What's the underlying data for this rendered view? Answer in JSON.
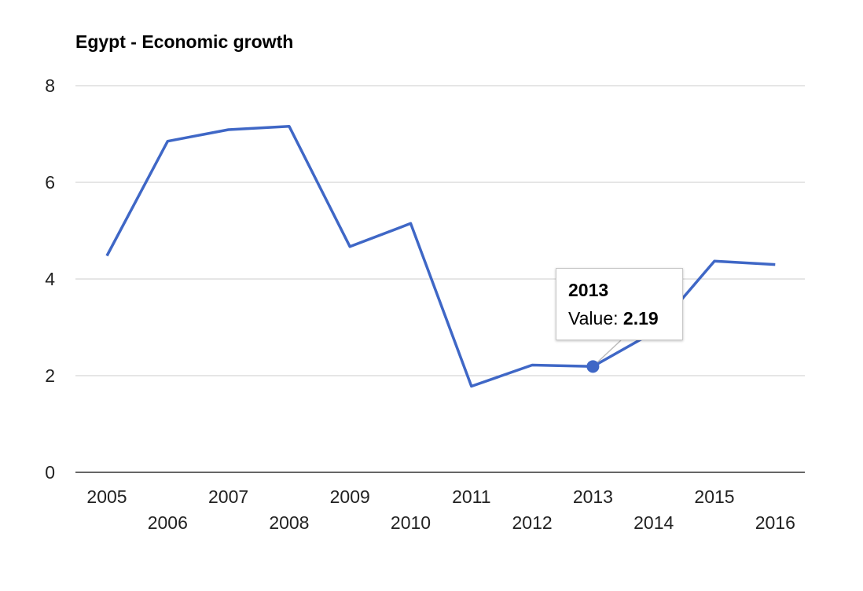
{
  "chart_data": {
    "type": "line",
    "title": "Egypt - Economic growth",
    "xlabel": "",
    "ylabel": "",
    "x": [
      "2005",
      "2006",
      "2007",
      "2008",
      "2009",
      "2010",
      "2011",
      "2012",
      "2013",
      "2014",
      "2015",
      "2016"
    ],
    "series": [
      {
        "values": [
          4.48,
          6.85,
          7.09,
          7.16,
          4.67,
          5.15,
          1.78,
          2.22,
          2.19,
          2.9,
          4.37,
          4.3
        ]
      }
    ],
    "ylim": [
      0,
      8
    ],
    "yticks": [
      "0",
      "2",
      "4",
      "6",
      "8"
    ],
    "grid": true,
    "legend": "none",
    "line_color": "#3f67c6",
    "grid_color": "#cccccc",
    "axis_color": "#333333"
  },
  "tooltip": {
    "category": "2013",
    "label": "Value:",
    "value": "2.19"
  }
}
